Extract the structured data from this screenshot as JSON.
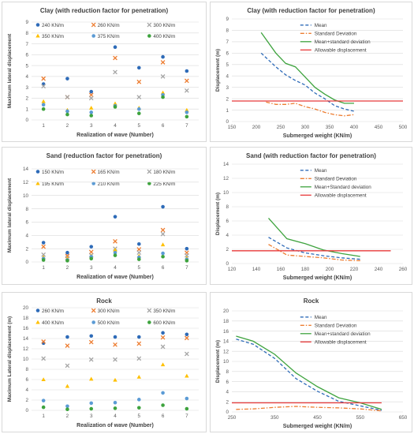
{
  "chart_data": [
    {
      "type": "scatter",
      "title": "Clay (with reduction factor for penetration)",
      "xlabel": "Realization of wave (Number)",
      "ylabel": "Maximum lateral displacement",
      "ylim": [
        0,
        9
      ],
      "yticks": [
        0,
        1,
        2,
        3,
        4,
        5,
        6,
        7,
        8,
        9
      ],
      "categories": [
        "1",
        "2",
        "3",
        "4",
        "5",
        "6",
        "7"
      ],
      "legend_rows": 3,
      "series": [
        {
          "name": "240 KN/m",
          "marker": "dot",
          "color": "#2e6bb8",
          "values": [
            3.3,
            3.8,
            2.6,
            6.7,
            4.8,
            5.8,
            4.5
          ]
        },
        {
          "name": "260 KN/m",
          "marker": "x",
          "color": "#ed7d31",
          "values": [
            3.8,
            2.1,
            2.3,
            5.7,
            3.5,
            5.3,
            3.6
          ]
        },
        {
          "name": "300 KN/m",
          "marker": "x",
          "color": "#a5a5a5",
          "values": [
            3.1,
            2.1,
            2.0,
            4.4,
            2.1,
            4.0,
            2.7
          ]
        },
        {
          "name": "350 KN/m",
          "marker": "tri",
          "color": "#ffc000",
          "values": [
            1.7,
            0.9,
            1.1,
            1.5,
            1.1,
            2.5,
            0.9
          ]
        },
        {
          "name": "375 KN/m",
          "marker": "dot",
          "color": "#5b9bd5",
          "values": [
            1.4,
            0.8,
            0.7,
            1.3,
            1.0,
            2.3,
            0.7
          ]
        },
        {
          "name": "400 KN/m",
          "marker": "dot",
          "color": "#3ea33e",
          "values": [
            1.0,
            0.5,
            0.4,
            1.2,
            0.6,
            2.1,
            0.3
          ]
        }
      ]
    },
    {
      "type": "line",
      "title": "Clay (with reduction factor for penetration)",
      "xlabel": "Submerged weight (KN/m)",
      "ylabel": "Displacement (m)",
      "xlim": [
        150,
        500
      ],
      "ylim": [
        0,
        9
      ],
      "xticks": [
        150,
        200,
        250,
        300,
        350,
        400,
        450,
        500
      ],
      "yticks": [
        0,
        1,
        2,
        3,
        4,
        5,
        6,
        7,
        8,
        9
      ],
      "series": [
        {
          "name": "Mean",
          "style": "dash",
          "color": "#2e6bb8",
          "x": [
            210,
            240,
            260,
            280,
            300,
            320,
            340,
            360,
            380,
            400
          ],
          "y": [
            6.0,
            4.8,
            4.1,
            3.6,
            3.2,
            2.5,
            2.0,
            1.4,
            1.1,
            0.9
          ]
        },
        {
          "name": "Standard Deviation",
          "style": "dashdot",
          "color": "#ed7d31",
          "x": [
            220,
            240,
            260,
            280,
            300,
            320,
            340,
            360,
            380,
            400
          ],
          "y": [
            1.7,
            1.5,
            1.5,
            1.6,
            1.3,
            1.1,
            0.8,
            0.6,
            0.5,
            0.6
          ]
        },
        {
          "name": "Mean+standard deviation",
          "style": "solid",
          "color": "#3ea33e",
          "x": [
            210,
            240,
            260,
            280,
            300,
            320,
            340,
            360,
            380,
            400
          ],
          "y": [
            7.8,
            6.0,
            5.1,
            4.8,
            3.9,
            3.0,
            2.4,
            1.9,
            1.6,
            1.6
          ]
        },
        {
          "name": "Allowable displacement",
          "style": "solid",
          "color": "#e8393a",
          "x": [
            150,
            500
          ],
          "y": [
            1.8,
            1.8
          ]
        }
      ]
    },
    {
      "type": "scatter",
      "title": "Sand (reduction factor for penetration)",
      "xlabel": "Realization of wave (Number)",
      "ylabel": "Maximum lateral displacement",
      "ylim": [
        0,
        14
      ],
      "yticks": [
        0,
        2,
        4,
        6,
        8,
        10,
        12,
        14
      ],
      "categories": [
        "1",
        "2",
        "3",
        "4",
        "5",
        "6",
        "7"
      ],
      "legend_rows": 2,
      "series": [
        {
          "name": "150 KN/m",
          "marker": "dot",
          "color": "#2e6bb8",
          "values": [
            2.9,
            1.4,
            2.3,
            6.8,
            2.7,
            8.3,
            2.0
          ]
        },
        {
          "name": "165 KN/m",
          "marker": "x",
          "color": "#ed7d31",
          "values": [
            2.3,
            0.9,
            1.5,
            3.1,
            1.9,
            4.8,
            1.4
          ]
        },
        {
          "name": "180 KN/m",
          "marker": "x",
          "color": "#a5a5a5",
          "values": [
            1.1,
            0.6,
            1.0,
            2.0,
            1.4,
            4.2,
            1.0
          ]
        },
        {
          "name": "195 KN/m",
          "marker": "tri",
          "color": "#ffc000",
          "values": [
            0.7,
            0.5,
            0.9,
            1.8,
            0.9,
            2.6,
            0.6
          ]
        },
        {
          "name": "210 KN/m",
          "marker": "dot",
          "color": "#5b9bd5",
          "values": [
            0.5,
            0.3,
            0.8,
            1.4,
            0.7,
            1.3,
            0.4
          ]
        },
        {
          "name": "225 KN/m",
          "marker": "dot",
          "color": "#3ea33e",
          "values": [
            0.3,
            0.2,
            0.5,
            1.0,
            0.4,
            0.8,
            0.2
          ]
        }
      ]
    },
    {
      "type": "line",
      "title": "Sand (with reduction factor for penetration)",
      "xlabel": "Submerged weight (KN/m)",
      "ylabel": "Displacement (m)",
      "xlim": [
        120,
        260
      ],
      "ylim": [
        0,
        14
      ],
      "xticks": [
        120,
        140,
        160,
        180,
        200,
        220,
        240,
        260
      ],
      "yticks": [
        0,
        2,
        4,
        6,
        8,
        10,
        12,
        14
      ],
      "series": [
        {
          "name": "Mean",
          "style": "dash",
          "color": "#2e6bb8",
          "x": [
            150,
            165,
            180,
            195,
            210,
            225
          ],
          "y": [
            3.7,
            2.2,
            1.5,
            1.1,
            0.8,
            0.6
          ]
        },
        {
          "name": "Standard Deviation",
          "style": "dashdot",
          "color": "#ed7d31",
          "x": [
            150,
            165,
            180,
            195,
            210,
            225
          ],
          "y": [
            2.7,
            1.2,
            1.0,
            0.8,
            0.5,
            0.4
          ]
        },
        {
          "name": "Mean+Standard deviation",
          "style": "solid",
          "color": "#3ea33e",
          "x": [
            150,
            165,
            180,
            195,
            210,
            225
          ],
          "y": [
            6.4,
            3.5,
            2.8,
            1.9,
            1.4,
            1.0
          ]
        },
        {
          "name": "Allowable displacement",
          "style": "solid",
          "color": "#e8393a",
          "x": [
            120,
            250
          ],
          "y": [
            1.8,
            1.8
          ]
        }
      ]
    },
    {
      "type": "scatter",
      "title": "Rock",
      "xlabel": "Realization of wave (Number)",
      "ylabel": "Maximum Lateral displacement (m)",
      "ylim": [
        0,
        20
      ],
      "yticks": [
        0,
        2,
        4,
        6,
        8,
        10,
        12,
        14,
        16,
        18,
        20
      ],
      "categories": [
        "1",
        "2",
        "3",
        "4",
        "5",
        "6",
        "7"
      ],
      "legend_rows": 2,
      "series": [
        {
          "name": "260 KN/m",
          "marker": "dot",
          "color": "#2e6bb8",
          "values": [
            13.1,
            14.3,
            14.5,
            14.3,
            14.3,
            15.1,
            14.8
          ]
        },
        {
          "name": "300 KN/m",
          "marker": "x",
          "color": "#ed7d31",
          "values": [
            13.4,
            12.6,
            13.3,
            12.8,
            13.0,
            14.2,
            14.1
          ]
        },
        {
          "name": "350 KN/m",
          "marker": "x",
          "color": "#a5a5a5",
          "values": [
            10.1,
            8.7,
            9.9,
            9.9,
            10.1,
            12.4,
            11.0
          ]
        },
        {
          "name": "400 KN/m",
          "marker": "tri",
          "color": "#ffc000",
          "values": [
            6.0,
            4.7,
            6.1,
            5.9,
            6.5,
            8.9,
            6.7
          ]
        },
        {
          "name": "500 KN/m",
          "marker": "dot",
          "color": "#5b9bd5",
          "values": [
            1.9,
            0.8,
            1.4,
            1.5,
            2.1,
            3.4,
            2.3
          ]
        },
        {
          "name": "600 KN/m",
          "marker": "dot",
          "color": "#3ea33e",
          "values": [
            0.6,
            0.2,
            0.3,
            0.4,
            0.5,
            1.0,
            0.3
          ]
        }
      ]
    },
    {
      "type": "line",
      "title": "Rock",
      "xlabel": "Submerged weight (KN/m)",
      "ylabel": "Displacement (m)",
      "xlim": [
        250,
        650
      ],
      "ylim": [
        0,
        20
      ],
      "xticks": [
        250,
        350,
        450,
        550,
        650
      ],
      "yticks": [
        0,
        2,
        4,
        6,
        8,
        10,
        12,
        14,
        16,
        18,
        20
      ],
      "series": [
        {
          "name": "Mean",
          "style": "dash",
          "color": "#2e6bb8",
          "x": [
            260,
            300,
            350,
            400,
            450,
            500,
            550,
            600
          ],
          "y": [
            14.4,
            13.4,
            10.6,
            6.6,
            4.1,
            2.1,
            1.2,
            0.3
          ]
        },
        {
          "name": "Standard Deviation",
          "style": "dashdot",
          "color": "#ed7d31",
          "x": [
            260,
            300,
            350,
            400,
            450,
            500,
            550,
            600
          ],
          "y": [
            0.5,
            0.6,
            0.9,
            1.1,
            0.9,
            0.8,
            0.6,
            0.2
          ]
        },
        {
          "name": "Mean+standard deviation",
          "style": "solid",
          "color": "#3ea33e",
          "x": [
            260,
            300,
            350,
            400,
            450,
            500,
            550,
            600
          ],
          "y": [
            15.0,
            14.0,
            11.4,
            7.7,
            5.0,
            2.8,
            1.8,
            0.5
          ]
        },
        {
          "name": "Allowable displacement",
          "style": "solid",
          "color": "#e8393a",
          "x": [
            250,
            600
          ],
          "y": [
            1.8,
            1.8
          ]
        }
      ]
    }
  ]
}
